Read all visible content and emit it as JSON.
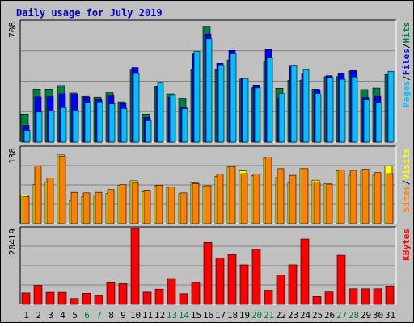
{
  "chart_data": {
    "type": "bar",
    "title": "Daily usage for July 2019",
    "categories": [
      "1",
      "2",
      "3",
      "4",
      "5",
      "6",
      "7",
      "8",
      "9",
      "10",
      "11",
      "12",
      "13",
      "14",
      "15",
      "16",
      "17",
      "18",
      "19",
      "20",
      "21",
      "22",
      "23",
      "24",
      "25",
      "26",
      "27",
      "28",
      "29",
      "30",
      "31"
    ],
    "weekend_days": [
      "6",
      "7",
      "13",
      "14",
      "20",
      "21",
      "27",
      "28"
    ],
    "panels": [
      {
        "id": "hits-files-pages",
        "ymax": 708,
        "ymax_label": "708",
        "ylabel_parts": [
          "Pages",
          "/",
          "Files",
          "/",
          "Hits"
        ],
        "series": [
          {
            "name": "Hits",
            "color": "#008040",
            "values": [
              165,
              312,
              312,
              333,
              290,
              270,
              265,
              292,
              237,
              425,
              165,
              327,
              285,
              259,
              430,
              681,
              427,
              484,
              371,
              320,
              476,
              317,
              364,
              365,
              312,
              385,
              386,
              418,
              309,
              318,
              398
            ]
          },
          {
            "name": "Files",
            "color": "#0000ff",
            "values": [
              98,
              267,
              268,
              285,
              283,
              265,
              252,
              273,
              227,
              439,
              145,
              330,
              264,
              207,
              520,
              636,
              464,
              540,
              376,
              336,
              545,
              261,
              447,
              401,
              306,
              391,
              404,
              421,
              263,
              270,
              388
            ]
          },
          {
            "name": "Pages",
            "color": "#00c0ff",
            "values": [
              69,
              177,
              183,
              203,
              188,
              233,
              237,
              225,
              198,
              404,
              126,
              348,
              276,
              197,
              534,
              609,
              451,
              520,
              375,
              319,
              496,
              286,
              449,
              427,
              284,
              381,
              370,
              384,
              249,
              232,
              417
            ]
          }
        ]
      },
      {
        "id": "visits-sites",
        "ymax": 138,
        "ymax_label": "138",
        "ylabel_parts": [
          "Sites",
          "/",
          "Visits"
        ],
        "series": [
          {
            "name": "Visits",
            "color": "#ffff00",
            "values": [
              52,
              71,
              76,
              125,
              42,
              49,
              52,
              55,
              70,
              78,
              58,
              69,
              66,
              55,
              74,
              68,
              86,
              103,
              96,
              87,
              120,
              84,
              74,
              100,
              79,
              73,
              96,
              88,
              97,
              88,
              105
            ]
          },
          {
            "name": "Sites",
            "color": "#ff8000",
            "values": [
              49,
              105,
              83,
              123,
              57,
              56,
              57,
              62,
              71,
              74,
              61,
              70,
              67,
              56,
              73,
              69,
              90,
              104,
              91,
              90,
              121,
              100,
              88,
              100,
              76,
              71,
              98,
              97,
              99,
              93,
              91
            ]
          }
        ]
      },
      {
        "id": "kbytes",
        "ymax": 20419,
        "ymax_label": "20419",
        "ylabel_parts": [
          "KBytes"
        ],
        "series": [
          {
            "name": "KBytes",
            "color": "#ff0000",
            "values": [
              3057,
              5090,
              3240,
              3240,
              1574,
              2963,
              2500,
              6028,
              5555,
              20419,
              3286,
              4079,
              6944,
              2870,
              5970,
              16666,
              12500,
              13425,
              10648,
              14814,
              3796,
              7963,
              10648,
              17592,
              2130,
              3333,
              13240,
              4167,
              4167,
              4167,
              4907
            ]
          }
        ]
      }
    ]
  }
}
